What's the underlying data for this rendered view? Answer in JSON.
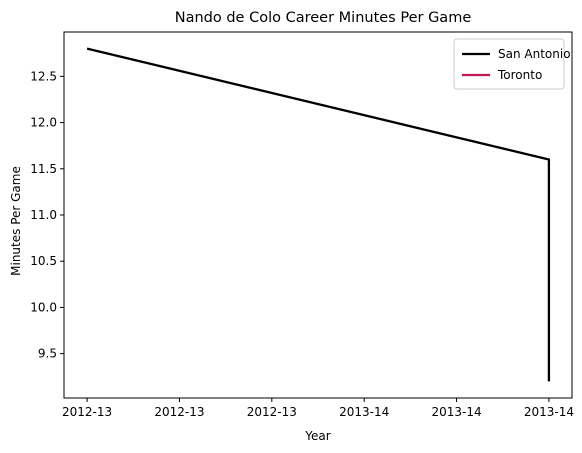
{
  "chart_data": {
    "type": "line",
    "title": "Nando de Colo Career Minutes Per Game",
    "xlabel": "Year",
    "ylabel": "Minutes Per Game",
    "x_tick_labels": [
      "2012-13",
      "2012-13",
      "2012-13",
      "2013-14",
      "2013-14",
      "2013-14"
    ],
    "y_ticks": [
      9.5,
      10.0,
      10.5,
      11.0,
      11.5,
      12.0,
      12.5
    ],
    "y_tick_labels": [
      "9.5",
      "10.0",
      "10.5",
      "11.0",
      "11.5",
      "12.0",
      "12.5"
    ],
    "xlim": [
      -0.05,
      1.05
    ],
    "ylim": [
      9.02,
      12.98
    ],
    "grid": false,
    "legend_position": "top-right",
    "series": [
      {
        "name": "San Antonio",
        "color": "#000000",
        "points": [
          [
            0.0,
            12.8
          ],
          [
            1.0,
            11.6
          ],
          [
            1.0,
            9.2
          ]
        ]
      },
      {
        "name": "Toronto",
        "color": "#c2185b",
        "points": []
      }
    ]
  }
}
